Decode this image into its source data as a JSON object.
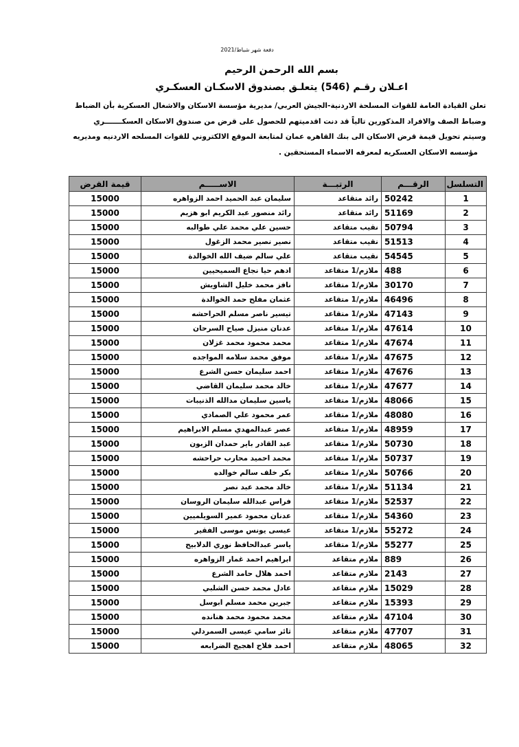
{
  "header": {
    "date_line": "دفعة شهر شباط/2021",
    "bismillah": "بسم الله الرحمن الرحيم",
    "title": "اعـلان رقـم (546) يتعلـق بصندوق الاسكـان العسكـري",
    "paragraph_lines": [
      "تعلن القيادة العامة للقوات المسلحة الاردنية-الجيش العربي/ مديرية مؤسسة الاسكان والاشغال العسكرية بأن الضباط",
      "وضباط الصف والافراد المذكورين تالياً قد دنت اقدميتهم للحصول على قرض من صندوق الاسكان العسكـــــــري",
      "وسيتم تحويل قيمة قرض الاسكان الى بنك القاهره عمان لمتابعة الموقع الالكتروني للقوات  المسلحه الاردنيه ومديريه",
      "مؤسسه الاسكان العسكريه لمعرفه الاسماء المستحقين ."
    ]
  },
  "table": {
    "columns": [
      "التسلسل",
      "الرقـــم",
      "الرتبـــة",
      "الاســـــم",
      "قيمة القرض"
    ],
    "rows": [
      [
        "1",
        "50242",
        "رائد متقاعد",
        "سليمان عبد الحميد احمد الزواهره",
        "15000"
      ],
      [
        "2",
        "51169",
        "رائد متقاعد",
        "رائد منصور عبد الكريم ابو هزيم",
        "15000"
      ],
      [
        "3",
        "50794",
        "نقيب متقاعد",
        "حسين علي محمد علي طوالبه",
        "15000"
      ],
      [
        "4",
        "51513",
        "نقيب متقاعد",
        "نصير نصير محمد الزغول",
        "15000"
      ],
      [
        "5",
        "54545",
        "نقيب متقاعد",
        "علي سالم ضيف الله الخوالدة",
        "15000"
      ],
      [
        "6",
        "488",
        "ملازم/1 متقاعد",
        "ادهم حيا نجاع السميحيين",
        "15000"
      ],
      [
        "7",
        "30170",
        "ملازم/1 متقاعد",
        "نافز محمد خليل الشاويش",
        "15000"
      ],
      [
        "8",
        "46496",
        "ملازم/1 متقاعد",
        "عثمان مفلح حمد الخوالدة",
        "15000"
      ],
      [
        "9",
        "47143",
        "ملازم/1 متقاعد",
        "تيسير ناصر مسلم الحراحشه",
        "15000"
      ],
      [
        "10",
        "47614",
        "ملازم/1 متقاعد",
        "عدنان منيزل صياح السرحان",
        "15000"
      ],
      [
        "11",
        "47674",
        "ملازم/1 متقاعد",
        "محمد محمود محمد غزلان",
        "15000"
      ],
      [
        "12",
        "47675",
        "ملازم/1 متقاعد",
        "موفق محمد سلامه المواجده",
        "15000"
      ],
      [
        "13",
        "47676",
        "ملازم/1 متقاعد",
        "احمد سليمان حسن الشرع",
        "15000"
      ],
      [
        "14",
        "47677",
        "ملازم/1 متقاعد",
        "خالد محمد سليمان القاضي",
        "15000"
      ],
      [
        "15",
        "48066",
        "ملازم/1 متقاعد",
        "ياسين سليمان مدالله الذنيبات",
        "15000"
      ],
      [
        "16",
        "48080",
        "ملازم/1 متقاعد",
        "عمر محمود علي الصمادي",
        "15000"
      ],
      [
        "17",
        "48959",
        "ملازم/1 متقاعد",
        "عصر عبدالمهدي مسلم الابراهيم",
        "15000"
      ],
      [
        "18",
        "50730",
        "ملازم/1 متقاعد",
        "عبد القادر باير حمدان الزبون",
        "15000"
      ],
      [
        "19",
        "50737",
        "ملازم/1 متقاعد",
        "محمد احميد محارب حراحشه",
        "15000"
      ],
      [
        "20",
        "50766",
        "ملازم/1 متقاعد",
        "بكر خلف سالم خوالده",
        "15000"
      ],
      [
        "21",
        "51134",
        "ملازم/1 متقاعد",
        "خالد محمد عبد نصر",
        "15000"
      ],
      [
        "22",
        "52537",
        "ملازم/1 متقاعد",
        "فراس عبدالله سليمان الروسان",
        "15000"
      ],
      [
        "23",
        "54360",
        "ملازم/1 متقاعد",
        "عدنان محمود عمير السويلميين",
        "15000"
      ],
      [
        "24",
        "55272",
        "ملازم/1 متقاعد",
        "عيسى يونس موسى الفقير",
        "15000"
      ],
      [
        "25",
        "55277",
        "ملازم/1 متقاعد",
        "ياسر عبدالحافظ نوري الدلابيح",
        "15000"
      ],
      [
        "26",
        "889",
        "ملازم متقاعد",
        "ابراهيم احمد غمار الزواهره",
        "15000"
      ],
      [
        "27",
        "2143",
        "ملازم متقاعد",
        "احمد هلال حامد الشرع",
        "15000"
      ],
      [
        "28",
        "15029",
        "ملازم متقاعد",
        "عادل محمد حسن الشلبي",
        "15000"
      ],
      [
        "29",
        "15393",
        "ملازم متقاعد",
        "جبرين محمد مسلم ابوسل",
        "15000"
      ],
      [
        "30",
        "47104",
        "ملازم متقاعد",
        "محمد محمود محمد هنانده",
        "15000"
      ],
      [
        "31",
        "47707",
        "ملازم متقاعد",
        "ثائر سامي عيسى السمردلي",
        "15000"
      ],
      [
        "32",
        "48065",
        "ملازم متقاعد",
        "احمد فلاح اهجيج الضرابعه",
        "15000"
      ]
    ]
  },
  "colors": {
    "header_bg": "#a6a6a6",
    "border": "#333333"
  }
}
